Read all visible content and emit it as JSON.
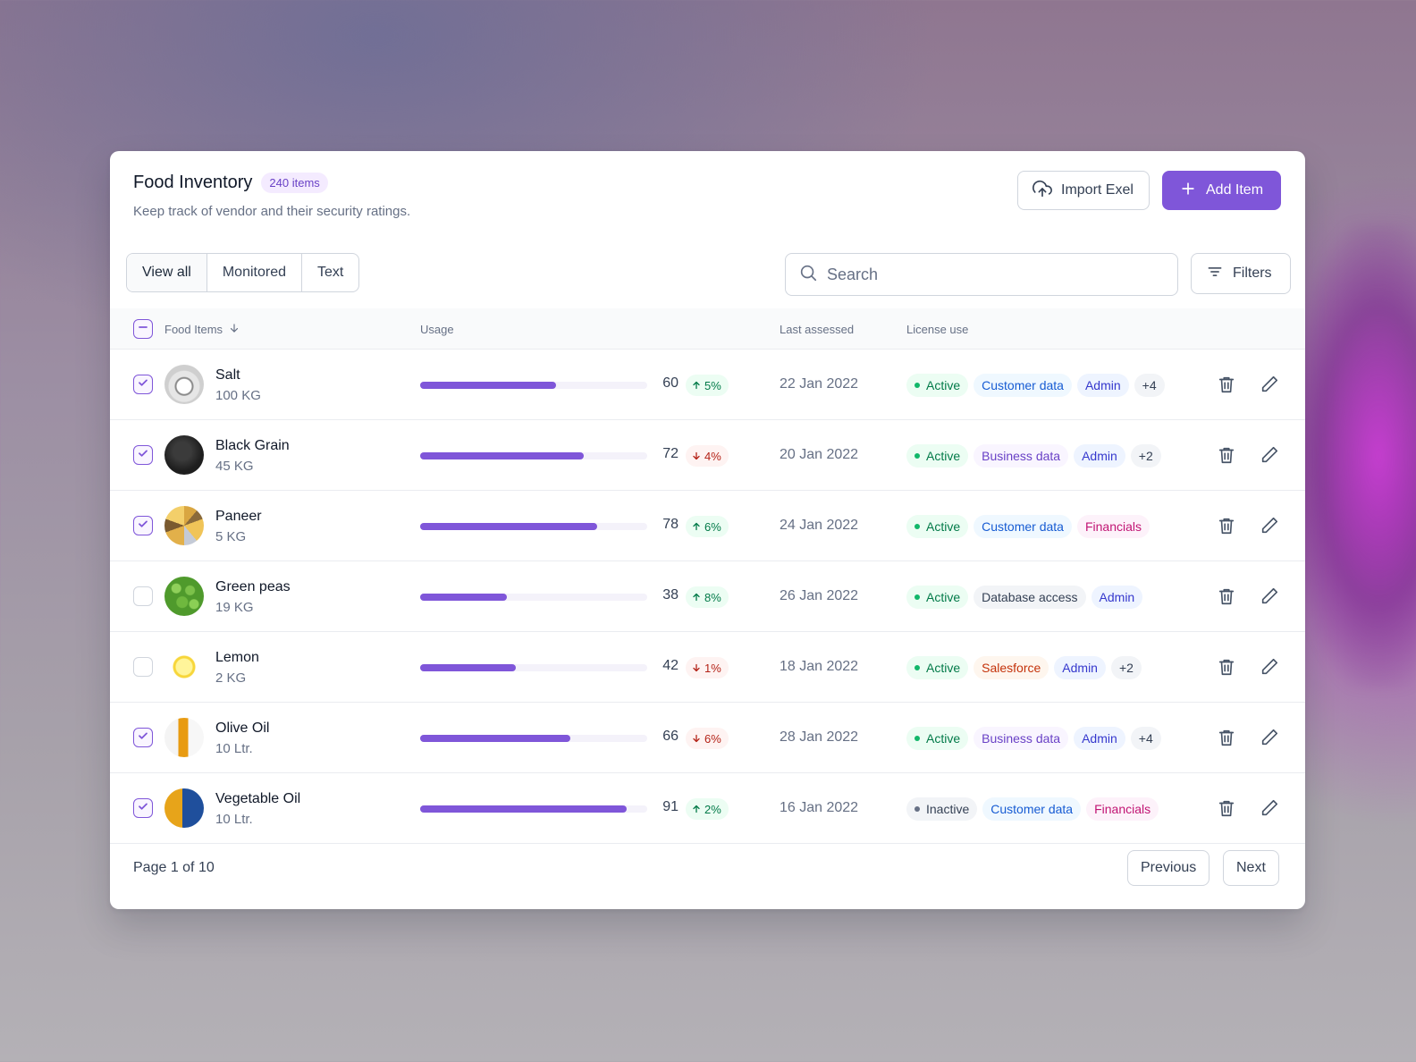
{
  "header": {
    "title": "Food Inventory",
    "count_badge": "240 items",
    "subtitle": "Keep track of vendor and their security ratings.",
    "import_label": "Import Exel",
    "add_label": "Add Item"
  },
  "tabs": [
    {
      "label": "View all",
      "active": true
    },
    {
      "label": "Monitored",
      "active": false
    },
    {
      "label": "Text",
      "active": false
    }
  ],
  "search": {
    "placeholder": "Search",
    "value": ""
  },
  "filters_label": "Filters",
  "columns": {
    "items": "Food Items",
    "usage": "Usage",
    "last_assessed": "Last assessed",
    "license_use": "License use"
  },
  "rows": [
    {
      "checked": true,
      "name": "Salt",
      "qty": "100 KG",
      "avatar": "salt",
      "usage": 60,
      "trend": "5%",
      "trend_dir": "up",
      "date": "22 Jan 2022",
      "tags": [
        {
          "label": "Active",
          "kind": "active"
        },
        {
          "label": "Customer data",
          "kind": "blue"
        },
        {
          "label": "Admin",
          "kind": "indigo"
        },
        {
          "label": "+4",
          "kind": "gray"
        }
      ]
    },
    {
      "checked": true,
      "name": "Black Grain",
      "qty": "45 KG",
      "avatar": "black",
      "usage": 72,
      "trend": "4%",
      "trend_dir": "down",
      "date": "20 Jan 2022",
      "tags": [
        {
          "label": "Active",
          "kind": "active"
        },
        {
          "label": "Business data",
          "kind": "purple"
        },
        {
          "label": "Admin",
          "kind": "indigo"
        },
        {
          "label": "+2",
          "kind": "gray"
        }
      ]
    },
    {
      "checked": true,
      "name": "Paneer",
      "qty": "5 KG",
      "avatar": "paneer",
      "usage": 78,
      "trend": "6%",
      "trend_dir": "up",
      "date": "24 Jan 2022",
      "tags": [
        {
          "label": "Active",
          "kind": "active"
        },
        {
          "label": "Customer data",
          "kind": "blue"
        },
        {
          "label": "Financials",
          "kind": "pink"
        }
      ]
    },
    {
      "checked": false,
      "name": "Green peas",
      "qty": "19 KG",
      "avatar": "peas",
      "usage": 38,
      "trend": "8%",
      "trend_dir": "up",
      "date": "26 Jan 2022",
      "tags": [
        {
          "label": "Active",
          "kind": "active"
        },
        {
          "label": "Database access",
          "kind": "gray"
        },
        {
          "label": "Admin",
          "kind": "indigo"
        }
      ]
    },
    {
      "checked": false,
      "name": "Lemon",
      "qty": "2 KG",
      "avatar": "lemon",
      "usage": 42,
      "trend": "1%",
      "trend_dir": "down",
      "date": "18 Jan 2022",
      "tags": [
        {
          "label": "Active",
          "kind": "active"
        },
        {
          "label": "Salesforce",
          "kind": "orange"
        },
        {
          "label": "Admin",
          "kind": "indigo"
        },
        {
          "label": "+2",
          "kind": "gray"
        }
      ]
    },
    {
      "checked": true,
      "name": "Olive Oil",
      "qty": "10 Ltr.",
      "avatar": "olive",
      "usage": 66,
      "trend": "6%",
      "trend_dir": "down",
      "date": "28 Jan 2022",
      "tags": [
        {
          "label": "Active",
          "kind": "active"
        },
        {
          "label": "Business data",
          "kind": "purple"
        },
        {
          "label": "Admin",
          "kind": "indigo"
        },
        {
          "label": "+4",
          "kind": "gray"
        }
      ]
    },
    {
      "checked": true,
      "name": "Vegetable Oil",
      "qty": "10 Ltr.",
      "avatar": "vegoil",
      "usage": 91,
      "trend": "2%",
      "trend_dir": "up",
      "date": "16 Jan 2022",
      "tags": [
        {
          "label": "Inactive",
          "kind": "inactive"
        },
        {
          "label": "Customer data",
          "kind": "blue"
        },
        {
          "label": "Financials",
          "kind": "pink"
        }
      ]
    }
  ],
  "footer": {
    "page_info": "Page 1 of 10",
    "previous_label": "Previous",
    "next_label": "Next"
  },
  "colors": {
    "accent": "#7f56d9",
    "up": "#027a48",
    "down": "#b42318"
  }
}
